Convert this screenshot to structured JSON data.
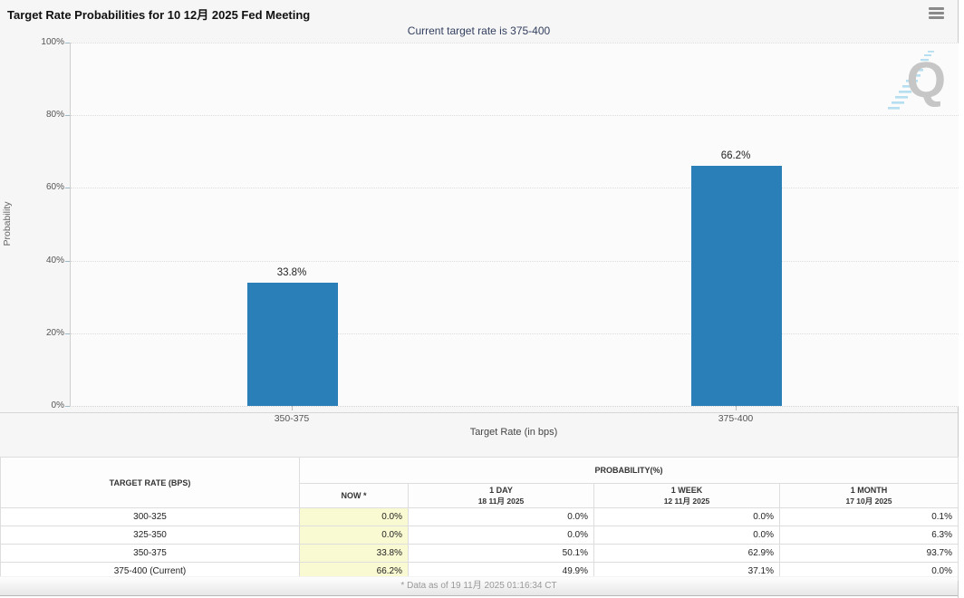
{
  "header": {
    "title": "Target Rate Probabilities for 10 12月 2025 Fed Meeting",
    "subtitle": "Current target rate is 375-400"
  },
  "chart_data": {
    "type": "bar",
    "categories": [
      "350-375",
      "375-400"
    ],
    "values": [
      33.8,
      66.2
    ],
    "value_labels": [
      "33.8%",
      "66.2%"
    ],
    "title": "Target Rate Probabilities for 10 12月 2025 Fed Meeting",
    "xlabel": "Target Rate (in bps)",
    "ylabel": "Probability",
    "ylim": [
      0,
      100
    ],
    "yticks": [
      "0%",
      "20%",
      "40%",
      "60%",
      "80%",
      "100%"
    ],
    "legend": "none",
    "grid": "horizontal-dotted",
    "bar_color": "#2a7fb8"
  },
  "watermark": {
    "letter": "Q"
  },
  "table": {
    "col1_header": "TARGET RATE (BPS)",
    "group_header": "PROBABILITY(%)",
    "columns": [
      {
        "label": "NOW *",
        "sublabel": ""
      },
      {
        "label": "1 DAY",
        "sublabel": "18 11月 2025"
      },
      {
        "label": "1 WEEK",
        "sublabel": "12 11月 2025"
      },
      {
        "label": "1 MONTH",
        "sublabel": "17 10月 2025"
      }
    ],
    "rows": [
      {
        "rate": "300-325",
        "values": [
          "0.0%",
          "0.0%",
          "0.0%",
          "0.1%"
        ]
      },
      {
        "rate": "325-350",
        "values": [
          "0.0%",
          "0.0%",
          "0.0%",
          "6.3%"
        ]
      },
      {
        "rate": "350-375",
        "values": [
          "33.8%",
          "50.1%",
          "62.9%",
          "93.7%"
        ]
      },
      {
        "rate": "375-400 (Current)",
        "values": [
          "66.2%",
          "49.9%",
          "37.1%",
          "0.0%"
        ]
      }
    ]
  },
  "footer": {
    "note": "* Data as of 19 11月 2025 01:16:34 CT"
  },
  "colors": {
    "bar": "#2a7fb8",
    "now_column_bg": "#fafad2",
    "subtitle_text": "#333f5f",
    "section_bg": "#f6f6f6"
  }
}
